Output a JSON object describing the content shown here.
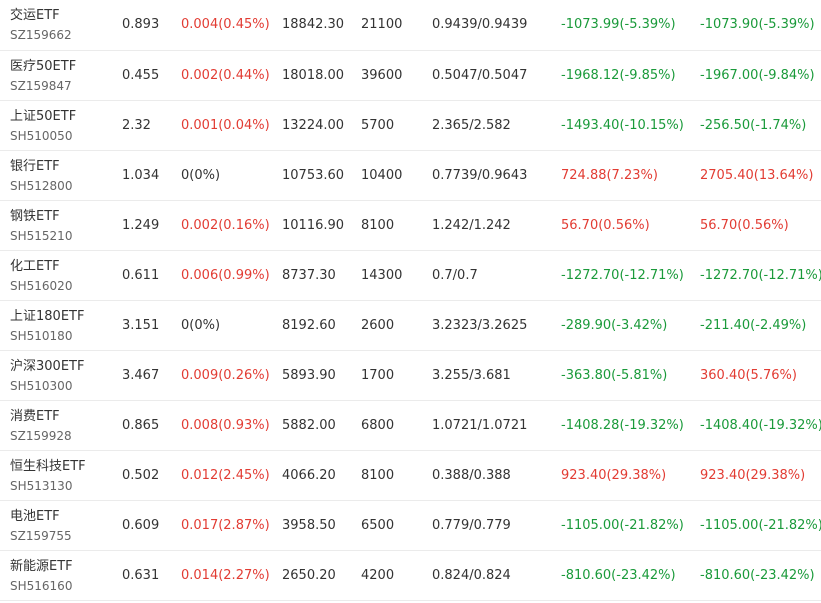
{
  "colors": {
    "up": "#e23c33",
    "down": "#1a9a3a",
    "neutral": "#333333"
  },
  "rows": [
    {
      "name": "交运ETF",
      "code": "SZ159662",
      "price": "0.893",
      "change": "0.004(0.45%)",
      "change_dir": "up",
      "amount": "18842.30",
      "volume": "21100",
      "bid_ask": "0.9439/0.9439",
      "flow1": "-1073.99(-5.39%)",
      "flow1_dir": "down",
      "flow2": "-1073.90(-5.39%)",
      "flow2_dir": "down"
    },
    {
      "name": "医疗50ETF",
      "code": "SZ159847",
      "price": "0.455",
      "change": "0.002(0.44%)",
      "change_dir": "up",
      "amount": "18018.00",
      "volume": "39600",
      "bid_ask": "0.5047/0.5047",
      "flow1": "-1968.12(-9.85%)",
      "flow1_dir": "down",
      "flow2": "-1967.00(-9.84%)",
      "flow2_dir": "down"
    },
    {
      "name": "上证50ETF",
      "code": "SH510050",
      "price": "2.32",
      "change": "0.001(0.04%)",
      "change_dir": "up",
      "amount": "13224.00",
      "volume": "5700",
      "bid_ask": "2.365/2.582",
      "flow1": "-1493.40(-10.15%)",
      "flow1_dir": "down",
      "flow2": "-256.50(-1.74%)",
      "flow2_dir": "down"
    },
    {
      "name": "银行ETF",
      "code": "SH512800",
      "price": "1.034",
      "change": "0(0%)",
      "change_dir": "flat",
      "amount": "10753.60",
      "volume": "10400",
      "bid_ask": "0.7739/0.9643",
      "flow1": "724.88(7.23%)",
      "flow1_dir": "up",
      "flow2": "2705.40(13.64%)",
      "flow2_dir": "up"
    },
    {
      "name": "钢铁ETF",
      "code": "SH515210",
      "price": "1.249",
      "change": "0.002(0.16%)",
      "change_dir": "up",
      "amount": "10116.90",
      "volume": "8100",
      "bid_ask": "1.242/1.242",
      "flow1": "56.70(0.56%)",
      "flow1_dir": "up",
      "flow2": "56.70(0.56%)",
      "flow2_dir": "up"
    },
    {
      "name": "化工ETF",
      "code": "SH516020",
      "price": "0.611",
      "change": "0.006(0.99%)",
      "change_dir": "up",
      "amount": "8737.30",
      "volume": "14300",
      "bid_ask": "0.7/0.7",
      "flow1": "-1272.70(-12.71%)",
      "flow1_dir": "down",
      "flow2": "-1272.70(-12.71%)",
      "flow2_dir": "down"
    },
    {
      "name": "上证180ETF",
      "code": "SH510180",
      "price": "3.151",
      "change": "0(0%)",
      "change_dir": "flat",
      "amount": "8192.60",
      "volume": "2600",
      "bid_ask": "3.2323/3.2625",
      "flow1": "-289.90(-3.42%)",
      "flow1_dir": "down",
      "flow2": "-211.40(-2.49%)",
      "flow2_dir": "down"
    },
    {
      "name": "沪深300ETF",
      "code": "SH510300",
      "price": "3.467",
      "change": "0.009(0.26%)",
      "change_dir": "up",
      "amount": "5893.90",
      "volume": "1700",
      "bid_ask": "3.255/3.681",
      "flow1": "-363.80(-5.81%)",
      "flow1_dir": "down",
      "flow2": "360.40(5.76%)",
      "flow2_dir": "up"
    },
    {
      "name": "消费ETF",
      "code": "SZ159928",
      "price": "0.865",
      "change": "0.008(0.93%)",
      "change_dir": "up",
      "amount": "5882.00",
      "volume": "6800",
      "bid_ask": "1.0721/1.0721",
      "flow1": "-1408.28(-19.32%)",
      "flow1_dir": "down",
      "flow2": "-1408.40(-19.32%)",
      "flow2_dir": "down"
    },
    {
      "name": "恒生科技ETF",
      "code": "SH513130",
      "price": "0.502",
      "change": "0.012(2.45%)",
      "change_dir": "up",
      "amount": "4066.20",
      "volume": "8100",
      "bid_ask": "0.388/0.388",
      "flow1": "923.40(29.38%)",
      "flow1_dir": "up",
      "flow2": "923.40(29.38%)",
      "flow2_dir": "up"
    },
    {
      "name": "电池ETF",
      "code": "SZ159755",
      "price": "0.609",
      "change": "0.017(2.87%)",
      "change_dir": "up",
      "amount": "3958.50",
      "volume": "6500",
      "bid_ask": "0.779/0.779",
      "flow1": "-1105.00(-21.82%)",
      "flow1_dir": "down",
      "flow2": "-1105.00(-21.82%)",
      "flow2_dir": "down"
    },
    {
      "name": "新能源ETF",
      "code": "SH516160",
      "price": "0.631",
      "change": "0.014(2.27%)",
      "change_dir": "up",
      "amount": "2650.20",
      "volume": "4200",
      "bid_ask": "0.824/0.824",
      "flow1": "-810.60(-23.42%)",
      "flow1_dir": "down",
      "flow2": "-810.60(-23.42%)",
      "flow2_dir": "down"
    }
  ]
}
